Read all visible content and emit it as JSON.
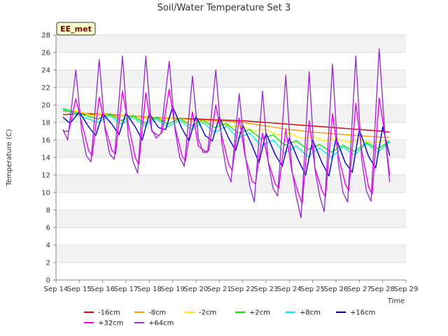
{
  "chart_data": {
    "type": "line",
    "title": "Soil/Water Temperature Set 3",
    "xlabel": "Time",
    "ylabel": "Temperature (C)",
    "badge": "EE_met",
    "xlim": [
      14,
      29
    ],
    "ylim": [
      0,
      28
    ],
    "x_ticks": [
      14,
      15,
      16,
      17,
      18,
      19,
      20,
      21,
      22,
      23,
      24,
      25,
      26,
      27,
      28,
      29
    ],
    "x_tick_labels": [
      "Sep 14",
      "Sep 15",
      "Sep 16",
      "Sep 17",
      "Sep 18",
      "Sep 19",
      "Sep 20",
      "Sep 21",
      "Sep 22",
      "Sep 23",
      "Sep 24",
      "Sep 25",
      "Sep 26",
      "Sep 27",
      "Sep 28",
      "Sep 29"
    ],
    "y_ticks": [
      0,
      2,
      4,
      6,
      8,
      10,
      12,
      14,
      16,
      18,
      20,
      22,
      24,
      26,
      28
    ],
    "grid": true,
    "legend_position": "bottom",
    "series": [
      {
        "name": "-16cm",
        "color": "#dd0000",
        "x": [
          14.3,
          15,
          16,
          17,
          18,
          19,
          20,
          21,
          22,
          23,
          24,
          25,
          26,
          27,
          28,
          28.3
        ],
        "y": [
          18.9,
          19.0,
          18.9,
          18.8,
          18.6,
          18.5,
          18.4,
          18.3,
          18.2,
          18.0,
          17.8,
          17.6,
          17.4,
          17.2,
          17.0,
          16.9
        ]
      },
      {
        "name": "-8cm",
        "color": "#ff9900",
        "x": [
          14.3,
          15,
          16,
          17,
          18,
          19,
          20,
          21,
          22,
          23,
          24,
          25,
          26,
          27,
          28,
          28.3
        ],
        "y": [
          19.3,
          19.1,
          19.0,
          18.8,
          18.6,
          18.5,
          18.3,
          18.2,
          18.0,
          17.6,
          17.2,
          16.9,
          16.7,
          16.5,
          16.3,
          16.3
        ]
      },
      {
        "name": "-2cm",
        "color": "#ffee00",
        "x": [
          14.3,
          15,
          15.5,
          16,
          16.5,
          17,
          17.5,
          18,
          18.5,
          19,
          19.5,
          20,
          20.5,
          21,
          21.5,
          22,
          22.5,
          23,
          23.5,
          24,
          24.5,
          25,
          25.5,
          26,
          26.5,
          27,
          27.5,
          28,
          28.3
        ],
        "y": [
          19.4,
          19.3,
          18.8,
          19.0,
          18.6,
          18.9,
          18.4,
          18.6,
          18.2,
          18.5,
          18.0,
          18.2,
          17.9,
          18.0,
          17.5,
          17.6,
          17.0,
          17.2,
          16.6,
          16.8,
          16.2,
          16.4,
          15.9,
          16.2,
          15.8,
          16.0,
          15.7,
          15.9,
          15.8
        ]
      },
      {
        "name": "+2cm",
        "color": "#00ee00",
        "x": [
          14.3,
          14.8,
          15.3,
          15.8,
          16.3,
          16.8,
          17.3,
          17.8,
          18.3,
          18.8,
          19.3,
          19.8,
          20.3,
          20.8,
          21.3,
          21.8,
          22.3,
          22.8,
          23.3,
          23.8,
          24.3,
          24.8,
          25.3,
          25.8,
          26.3,
          26.8,
          27.3,
          27.8,
          28.3
        ],
        "y": [
          19.6,
          19.2,
          18.8,
          18.4,
          19.0,
          18.2,
          18.8,
          17.9,
          18.6,
          17.8,
          18.5,
          17.6,
          18.3,
          17.4,
          17.9,
          16.8,
          17.2,
          16.1,
          16.6,
          15.4,
          15.9,
          14.9,
          15.5,
          14.6,
          15.4,
          14.7,
          15.7,
          15.0,
          15.9
        ]
      },
      {
        "name": "+8cm",
        "color": "#00eeee",
        "x": [
          14.3,
          14.8,
          15.3,
          15.8,
          16.3,
          16.8,
          17.3,
          17.8,
          18.3,
          18.8,
          19.3,
          19.8,
          20.3,
          20.8,
          21.3,
          21.8,
          22.3,
          22.8,
          23.3,
          23.8,
          24.3,
          24.8,
          25.3,
          25.8,
          26.3,
          26.8,
          27.3,
          27.8,
          28.3
        ],
        "y": [
          19.5,
          19.0,
          18.5,
          18.0,
          18.8,
          17.8,
          18.6,
          17.6,
          18.4,
          17.5,
          18.3,
          17.2,
          18.0,
          16.9,
          17.6,
          16.2,
          16.8,
          15.3,
          16.0,
          14.5,
          15.3,
          14.1,
          15.1,
          14.0,
          15.2,
          14.3,
          15.6,
          14.6,
          15.8
        ]
      },
      {
        "name": "+16cm",
        "color": "#0000cc",
        "x": [
          14.3,
          14.6,
          15.0,
          15.4,
          15.7,
          16.0,
          16.4,
          16.7,
          17.0,
          17.4,
          17.7,
          18.0,
          18.4,
          18.7,
          19.0,
          19.4,
          19.7,
          20.0,
          20.4,
          20.7,
          21.0,
          21.4,
          21.7,
          22.0,
          22.4,
          22.7,
          23.0,
          23.4,
          23.7,
          24.0,
          24.4,
          24.7,
          25.0,
          25.4,
          25.7,
          26.0,
          26.4,
          26.7,
          27.0,
          27.4,
          27.7,
          28.0,
          28.3
        ],
        "y": [
          18.6,
          17.9,
          19.2,
          17.5,
          16.5,
          19.0,
          17.8,
          16.6,
          19.1,
          17.5,
          16.0,
          19.0,
          17.4,
          17.2,
          19.8,
          17.3,
          15.9,
          18.7,
          16.5,
          15.9,
          18.6,
          16.2,
          14.8,
          17.7,
          15.4,
          13.4,
          16.8,
          14.3,
          13.0,
          16.2,
          13.6,
          12.0,
          16.0,
          13.4,
          11.9,
          16.2,
          13.4,
          12.3,
          17.2,
          14.1,
          12.8,
          17.5,
          14.2
        ]
      },
      {
        "name": "+32cm",
        "color": "#ee00ee",
        "x": [
          14.3,
          14.55,
          14.85,
          15.1,
          15.4,
          15.55,
          15.85,
          16.1,
          16.4,
          16.55,
          16.85,
          17.1,
          17.4,
          17.55,
          17.85,
          18.1,
          18.4,
          18.55,
          18.85,
          19.1,
          19.4,
          19.55,
          19.85,
          20.1,
          20.4,
          20.55,
          20.85,
          21.1,
          21.4,
          21.55,
          21.85,
          22.1,
          22.4,
          22.55,
          22.85,
          23.1,
          23.4,
          23.55,
          23.85,
          24.1,
          24.4,
          24.55,
          24.85,
          25.1,
          25.4,
          25.55,
          25.85,
          26.1,
          26.4,
          26.55,
          26.85,
          27.1,
          27.4,
          27.55,
          27.85,
          28.1,
          28.3
        ],
        "y": [
          17.0,
          17.0,
          20.7,
          18.0,
          14.8,
          14.2,
          20.9,
          17.5,
          14.8,
          14.4,
          21.6,
          17.8,
          14.0,
          13.2,
          21.4,
          17.0,
          16.5,
          16.9,
          21.8,
          17.5,
          14.2,
          13.6,
          19.2,
          15.3,
          14.7,
          14.8,
          20.0,
          16.5,
          13.2,
          12.5,
          18.5,
          14.2,
          11.3,
          11.0,
          16.8,
          13.5,
          11.0,
          10.5,
          17.2,
          12.5,
          9.8,
          8.7,
          18.2,
          12.8,
          10.2,
          9.5,
          19.0,
          14.2,
          11.0,
          10.2,
          20.2,
          14.8,
          10.6,
          9.8,
          20.8,
          16.5,
          12.0
        ]
      },
      {
        "name": "+64cm",
        "color": "#9933cc",
        "x": [
          14.3,
          14.5,
          14.85,
          15.1,
          15.3,
          15.5,
          15.85,
          16.1,
          16.3,
          16.5,
          16.85,
          17.1,
          17.3,
          17.5,
          17.85,
          18.1,
          18.3,
          18.5,
          18.85,
          19.1,
          19.3,
          19.5,
          19.85,
          20.1,
          20.3,
          20.5,
          20.85,
          21.1,
          21.3,
          21.5,
          21.85,
          22.1,
          22.3,
          22.5,
          22.85,
          23.1,
          23.3,
          23.5,
          23.85,
          24.1,
          24.3,
          24.5,
          24.85,
          25.1,
          25.3,
          25.5,
          25.85,
          26.1,
          26.3,
          26.5,
          26.85,
          27.1,
          27.3,
          27.5,
          27.85,
          28.1,
          28.3
        ],
        "y": [
          17.2,
          16.0,
          24.0,
          17.0,
          14.2,
          13.5,
          25.2,
          17.2,
          14.4,
          13.8,
          25.6,
          16.4,
          13.6,
          12.2,
          25.6,
          17.2,
          16.2,
          16.8,
          25.0,
          17.2,
          14.0,
          13.0,
          23.3,
          16.2,
          14.6,
          14.6,
          24.0,
          15.8,
          12.6,
          11.2,
          21.3,
          14.5,
          10.8,
          8.9,
          21.6,
          13.4,
          10.5,
          9.6,
          23.4,
          12.8,
          9.5,
          7.1,
          23.8,
          12.6,
          9.6,
          7.8,
          24.7,
          13.4,
          10.0,
          8.9,
          25.6,
          13.8,
          10.2,
          9.0,
          26.4,
          16.5,
          11.2
        ]
      }
    ]
  }
}
